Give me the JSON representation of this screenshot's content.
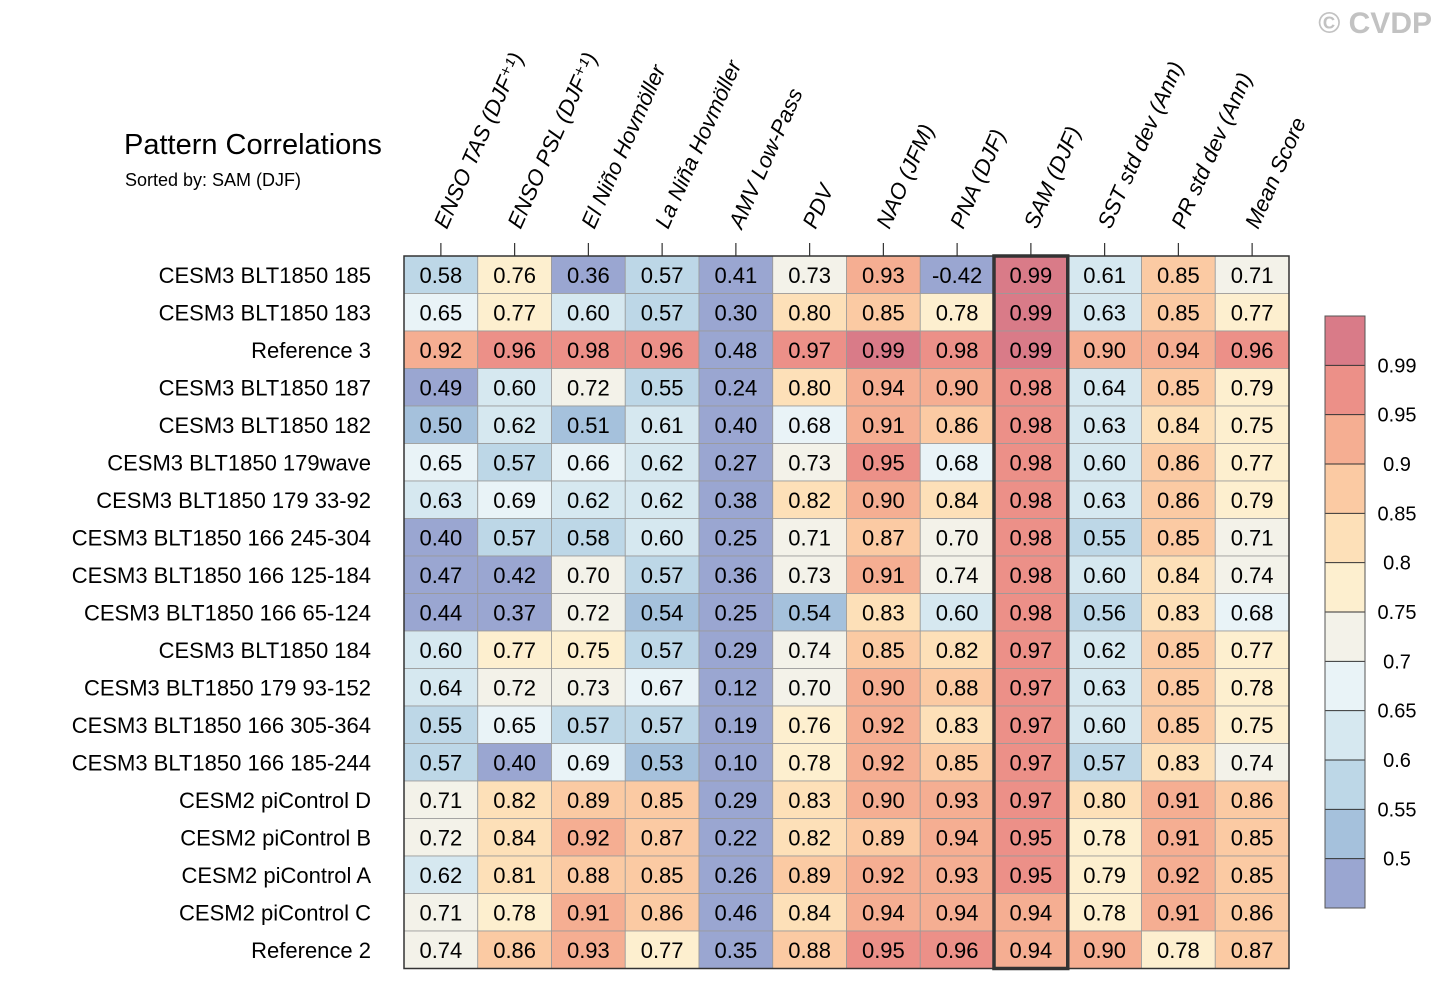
{
  "watermark": "© CVDP",
  "chart_data": {
    "type": "heatmap",
    "title": "Pattern Correlations",
    "subtitle": "Sorted by: SAM (DJF)",
    "highlighted_column": "SAM (DJF)",
    "columns": [
      "ENSO TAS (DJF⁺¹)",
      "ENSO PSL (DJF⁺¹)",
      "El Niño Hovmöller",
      "La Niña Hovmöller",
      "AMV Low-Pass",
      "PDV",
      "NAO (JFM)",
      "PNA (DJF)",
      "SAM (DJF)",
      "SST std dev (Ann)",
      "PR std dev (Ann)",
      "Mean Score"
    ],
    "rows": [
      "CESM3 BLT1850 185",
      "CESM3 BLT1850 183",
      "Reference 3",
      "CESM3 BLT1850 187",
      "CESM3 BLT1850 182",
      "CESM3 BLT1850 179wave",
      "CESM3 BLT1850 179 33-92",
      "CESM3 BLT1850 166 245-304",
      "CESM3 BLT1850 166 125-184",
      "CESM3 BLT1850 166 65-124",
      "CESM3 BLT1850 184",
      "CESM3 BLT1850 179 93-152",
      "CESM3 BLT1850 166 305-364",
      "CESM3 BLT1850 166 185-244",
      "CESM2 piControl D",
      "CESM2 piControl B",
      "CESM2 piControl A",
      "CESM2 piControl C",
      "Reference 2"
    ],
    "values": [
      [
        0.58,
        0.76,
        0.36,
        0.57,
        0.41,
        0.73,
        0.93,
        -0.42,
        0.99,
        0.61,
        0.85,
        0.71
      ],
      [
        0.65,
        0.77,
        0.6,
        0.57,
        0.3,
        0.8,
        0.85,
        0.78,
        0.99,
        0.63,
        0.85,
        0.77
      ],
      [
        0.92,
        0.96,
        0.98,
        0.96,
        0.48,
        0.97,
        0.99,
        0.98,
        0.99,
        0.9,
        0.94,
        0.96
      ],
      [
        0.49,
        0.6,
        0.72,
        0.55,
        0.24,
        0.8,
        0.94,
        0.9,
        0.98,
        0.64,
        0.85,
        0.79
      ],
      [
        0.5,
        0.62,
        0.51,
        0.61,
        0.4,
        0.68,
        0.91,
        0.86,
        0.98,
        0.63,
        0.84,
        0.75
      ],
      [
        0.65,
        0.57,
        0.66,
        0.62,
        0.27,
        0.73,
        0.95,
        0.68,
        0.98,
        0.6,
        0.86,
        0.77
      ],
      [
        0.63,
        0.69,
        0.62,
        0.62,
        0.38,
        0.82,
        0.9,
        0.84,
        0.98,
        0.63,
        0.86,
        0.79
      ],
      [
        0.4,
        0.57,
        0.58,
        0.6,
        0.25,
        0.71,
        0.87,
        0.7,
        0.98,
        0.55,
        0.85,
        0.71
      ],
      [
        0.47,
        0.42,
        0.7,
        0.57,
        0.36,
        0.73,
        0.91,
        0.74,
        0.98,
        0.6,
        0.84,
        0.74
      ],
      [
        0.44,
        0.37,
        0.72,
        0.54,
        0.25,
        0.54,
        0.83,
        0.6,
        0.98,
        0.56,
        0.83,
        0.68
      ],
      [
        0.6,
        0.77,
        0.75,
        0.57,
        0.29,
        0.74,
        0.85,
        0.82,
        0.97,
        0.62,
        0.85,
        0.77
      ],
      [
        0.64,
        0.72,
        0.73,
        0.67,
        0.12,
        0.7,
        0.9,
        0.88,
        0.97,
        0.63,
        0.85,
        0.78
      ],
      [
        0.55,
        0.65,
        0.57,
        0.57,
        0.19,
        0.76,
        0.92,
        0.83,
        0.97,
        0.6,
        0.85,
        0.75
      ],
      [
        0.57,
        0.4,
        0.69,
        0.53,
        0.1,
        0.78,
        0.92,
        0.85,
        0.97,
        0.57,
        0.83,
        0.74
      ],
      [
        0.71,
        0.82,
        0.89,
        0.85,
        0.29,
        0.83,
        0.9,
        0.93,
        0.97,
        0.8,
        0.91,
        0.86
      ],
      [
        0.72,
        0.84,
        0.92,
        0.87,
        0.22,
        0.82,
        0.89,
        0.94,
        0.95,
        0.78,
        0.91,
        0.85
      ],
      [
        0.62,
        0.81,
        0.88,
        0.85,
        0.26,
        0.89,
        0.92,
        0.93,
        0.95,
        0.79,
        0.92,
        0.85
      ],
      [
        0.71,
        0.78,
        0.91,
        0.86,
        0.46,
        0.84,
        0.94,
        0.94,
        0.94,
        0.78,
        0.91,
        0.86
      ],
      [
        0.74,
        0.86,
        0.93,
        0.77,
        0.35,
        0.88,
        0.95,
        0.96,
        0.94,
        0.9,
        0.78,
        0.87
      ]
    ],
    "colorbar": {
      "tick_labels": [
        "0.99",
        "0.95",
        "0.9",
        "0.85",
        "0.8",
        "0.75",
        "0.7",
        "0.65",
        "0.6",
        "0.55",
        "0.5"
      ],
      "levels": [
        0.5,
        0.55,
        0.6,
        0.65,
        0.7,
        0.75,
        0.8,
        0.85,
        0.9,
        0.95,
        0.99
      ],
      "colors": [
        "#9aa6d1",
        "#a5c1dc",
        "#bdd7e7",
        "#d6e8f0",
        "#e9f3f7",
        "#f3f2e9",
        "#fdefcf",
        "#fde0b8",
        "#fbcaa3",
        "#f5ae92",
        "#ec9088",
        "#d97b88"
      ]
    }
  }
}
